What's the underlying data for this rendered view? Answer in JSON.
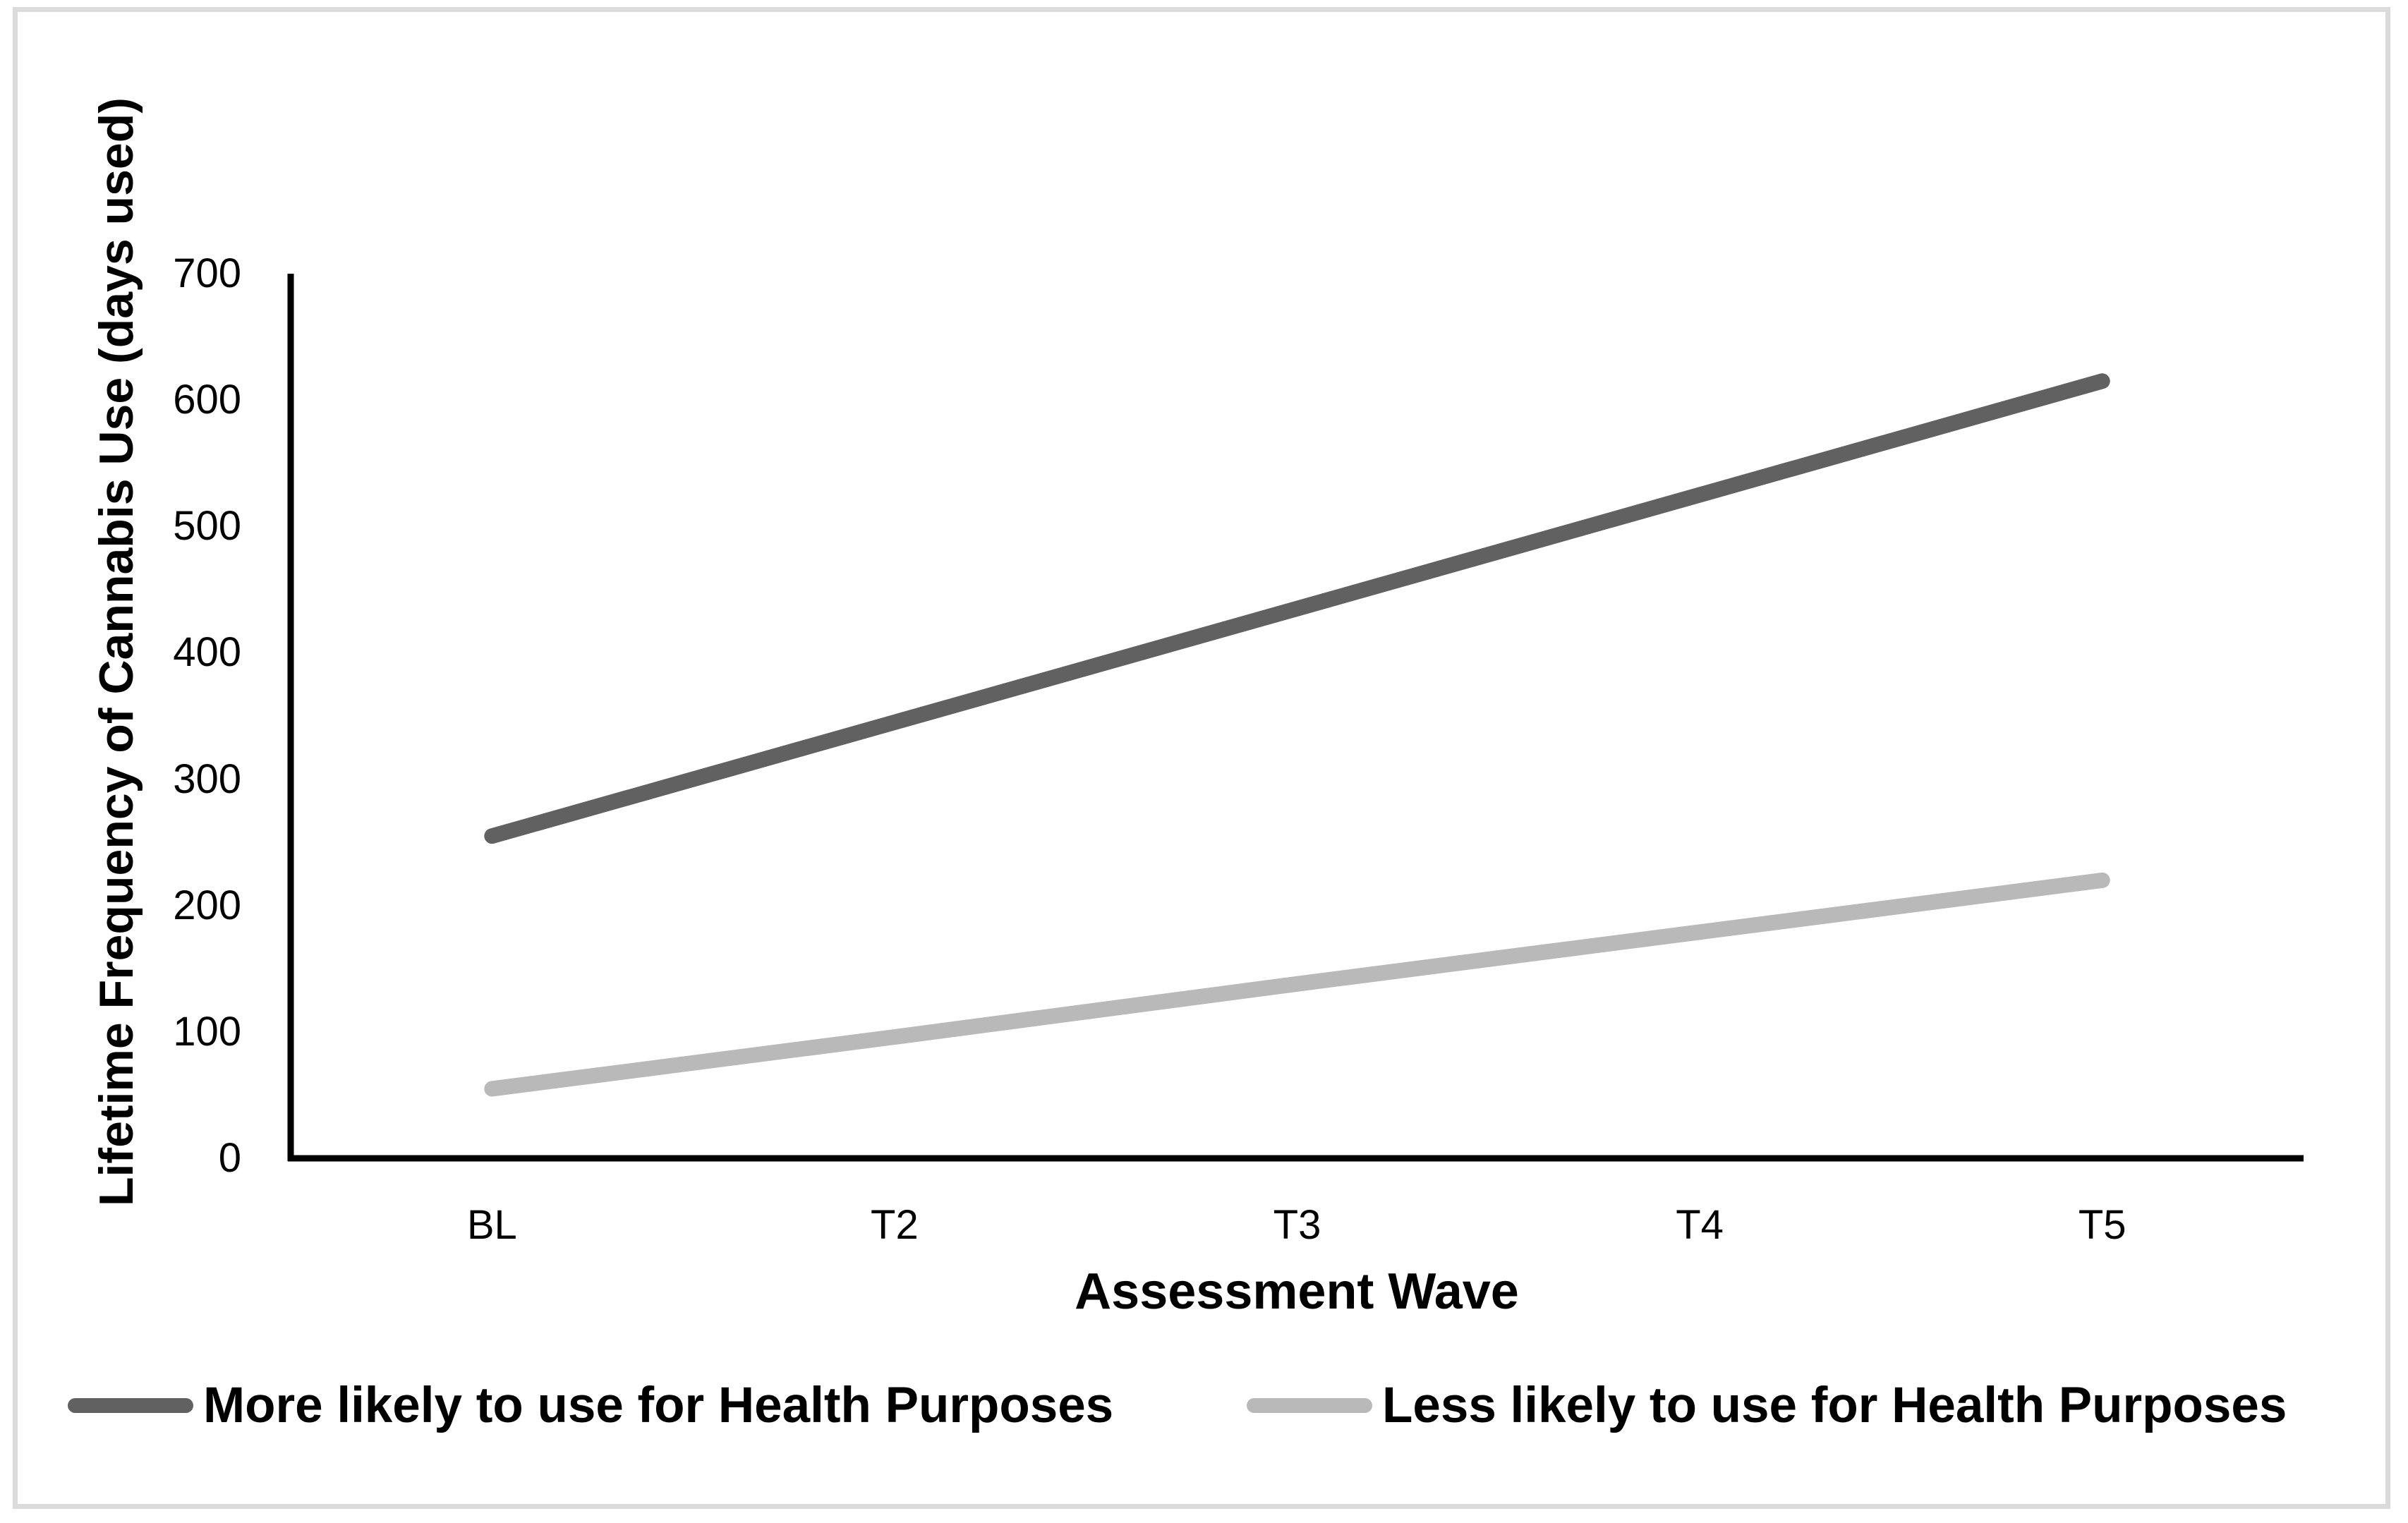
{
  "chart_data": {
    "type": "line",
    "title": "",
    "categories": [
      "BL",
      "T2",
      "T3",
      "T4",
      "T5"
    ],
    "series": [
      {
        "name": "More likely to use for Health Purposes",
        "color": "#616161",
        "values": [
          255,
          345,
          435,
          525,
          615
        ]
      },
      {
        "name": "Less likely to use for Health Purposes",
        "color": "#B9B9B9",
        "values": [
          55,
          96,
          138,
          179,
          220
        ]
      }
    ],
    "xlabel": "Assessment Wave",
    "ylabel": "Lifetime Frequency of Cannabis Use (days used)",
    "ylim": [
      0,
      700
    ],
    "yticks": [
      0,
      100,
      200,
      300,
      400,
      500,
      600,
      700
    ],
    "grid": false,
    "legend_position": "bottom",
    "axis_color": "#000000",
    "frame_border_color": "#DBDBDB",
    "background_color": "#FFFFFF"
  }
}
